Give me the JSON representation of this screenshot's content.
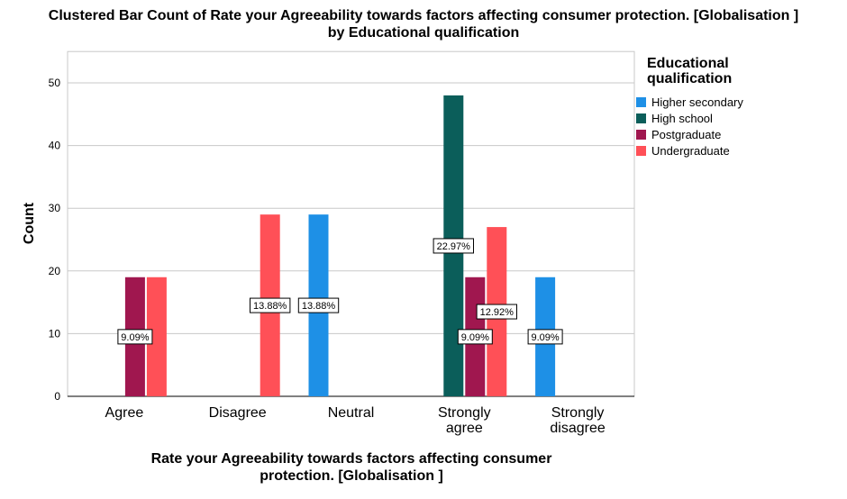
{
  "chart_data": {
    "type": "bar",
    "title": "Clustered Bar Count of Rate your Agreeability towards factors affecting consumer protection. [Globalisation ] by Educational qualification",
    "title_lines": [
      "Clustered Bar Count of Rate your Agreeability towards factors affecting consumer protection. [Globalisation ]",
      "by Educational qualification"
    ],
    "xlabel": "Rate your Agreeability towards factors affecting consumer protection. [Globalisation ]",
    "xlabel_lines": [
      "Rate your Agreeability towards factors affecting consumer",
      "protection. [Globalisation ]"
    ],
    "ylabel": "Count",
    "ylim": [
      0,
      55
    ],
    "yticks": [
      0,
      10,
      20,
      30,
      40,
      50
    ],
    "grid": true,
    "legend_position": "right",
    "legend_title_lines": [
      "Educational",
      "qualification"
    ],
    "categories": [
      "Agree",
      "Disagree",
      "Neutral",
      "Strongly agree",
      "Strongly disagree"
    ],
    "category_label_lines": [
      [
        "Agree"
      ],
      [
        "Disagree"
      ],
      [
        "Neutral"
      ],
      [
        "Strongly",
        "agree"
      ],
      [
        "Strongly",
        "disagree"
      ]
    ],
    "series": [
      {
        "name": "Higher secondary",
        "color": "#1e90e6",
        "values": [
          0,
          0,
          29,
          0,
          19
        ]
      },
      {
        "name": "High school",
        "color": "#0b5e5a",
        "values": [
          0,
          0,
          0,
          48,
          0
        ]
      },
      {
        "name": "Postgraduate",
        "color": "#a0174f",
        "values": [
          19,
          0,
          0,
          19,
          0
        ]
      },
      {
        "name": "Undergraduate",
        "color": "#ff5057",
        "values": [
          19,
          29,
          0,
          27,
          0
        ]
      }
    ],
    "annotations": [
      {
        "text": "9.09%",
        "category": 0,
        "series": 2,
        "y": 9.5
      },
      {
        "text": "13.88%",
        "category": 1,
        "series": 3,
        "y": 14.5
      },
      {
        "text": "13.88%",
        "category": 2,
        "series": 0,
        "y": 14.5
      },
      {
        "text": "22.97%",
        "category": 3,
        "series": 1,
        "y": 24
      },
      {
        "text": "9.09%",
        "category": 3,
        "series": 2,
        "y": 9.5
      },
      {
        "text": "12.92%",
        "category": 3,
        "series": 3,
        "y": 13.5
      },
      {
        "text": "9.09%",
        "category": 4,
        "series": 0,
        "y": 9.5
      }
    ]
  }
}
